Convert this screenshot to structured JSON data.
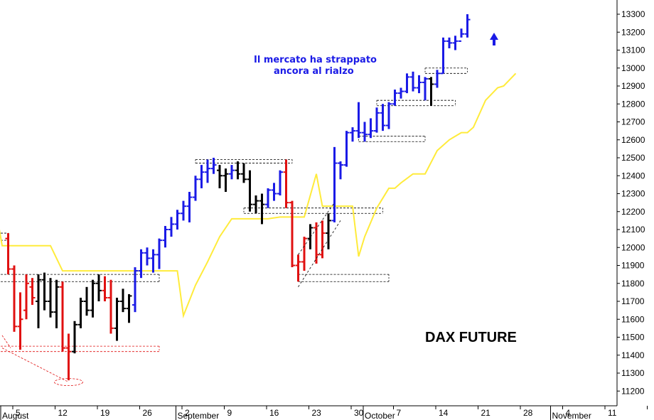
{
  "chart_data": {
    "type": "ohlc",
    "title": "DAX FUTURE",
    "annotation_lines": [
      "Il mercato ha strappato",
      "ancora al rialzo"
    ],
    "y_axis_position": "right",
    "ylim": [
      11150,
      13350
    ],
    "y_ticks": [
      11200,
      11300,
      11400,
      11500,
      11600,
      11700,
      11800,
      11900,
      12000,
      12100,
      12200,
      12300,
      12400,
      12500,
      12600,
      12700,
      12800,
      12900,
      13000,
      13100,
      13200,
      13300
    ],
    "x_ticks": [
      {
        "day": 0,
        "label": "5"
      },
      {
        "day": 7,
        "label": "12"
      },
      {
        "day": 14,
        "label": "19"
      },
      {
        "day": 21,
        "label": "26"
      },
      {
        "day": 28,
        "label": "2"
      },
      {
        "day": 35,
        "label": "9"
      },
      {
        "day": 42,
        "label": "16"
      },
      {
        "day": 49,
        "label": "23"
      },
      {
        "day": 56,
        "label": "30"
      },
      {
        "day": 63,
        "label": "7"
      },
      {
        "day": 70,
        "label": "14"
      },
      {
        "day": 77,
        "label": "21"
      },
      {
        "day": 84,
        "label": "28"
      },
      {
        "day": 91,
        "label": "4"
      },
      {
        "day": 98,
        "label": "11"
      },
      {
        "day": 105,
        "label": ""
      }
    ],
    "month_labels": [
      {
        "day": -2,
        "label": "August"
      },
      {
        "day": 27,
        "label": "September"
      },
      {
        "day": 58,
        "label": "October"
      },
      {
        "day": 89,
        "label": "November"
      }
    ],
    "colors": {
      "up_trend": "#1a1ae6",
      "down_trend": "#e01010",
      "neutral": "#000000",
      "trailing_line": "#ffeb3b",
      "grid": "#000000"
    },
    "bars": [
      {
        "d": -1,
        "o": 12050,
        "h": 12080,
        "l": 11850,
        "c": 11880,
        "color": "down"
      },
      {
        "d": 0,
        "o": 11880,
        "h": 11900,
        "l": 11530,
        "c": 11560,
        "color": "down"
      },
      {
        "d": 1,
        "o": 11560,
        "h": 11750,
        "l": 11430,
        "c": 11600,
        "color": "down"
      },
      {
        "d": 2,
        "o": 11650,
        "h": 11850,
        "l": 11600,
        "c": 11800,
        "color": "down"
      },
      {
        "d": 3,
        "o": 11780,
        "h": 11830,
        "l": 11680,
        "c": 11720,
        "color": "down"
      },
      {
        "d": 4,
        "o": 11700,
        "h": 11850,
        "l": 11550,
        "c": 11820,
        "color": "neutral"
      },
      {
        "d": 5,
        "o": 11820,
        "h": 11860,
        "l": 11650,
        "c": 11700,
        "color": "neutral"
      },
      {
        "d": 6,
        "o": 11700,
        "h": 11830,
        "l": 11610,
        "c": 11640,
        "color": "neutral"
      },
      {
        "d": 7,
        "o": 11640,
        "h": 11820,
        "l": 11550,
        "c": 11780,
        "color": "neutral"
      },
      {
        "d": 8,
        "o": 11780,
        "h": 11810,
        "l": 11420,
        "c": 11440,
        "color": "down"
      },
      {
        "d": 9,
        "o": 11440,
        "h": 11520,
        "l": 11260,
        "c": 11420,
        "color": "down"
      },
      {
        "d": 10,
        "o": 11420,
        "h": 11590,
        "l": 11410,
        "c": 11570,
        "color": "neutral"
      },
      {
        "d": 11,
        "o": 11570,
        "h": 11720,
        "l": 11550,
        "c": 11700,
        "color": "neutral"
      },
      {
        "d": 12,
        "o": 11700,
        "h": 11780,
        "l": 11620,
        "c": 11650,
        "color": "neutral"
      },
      {
        "d": 13,
        "o": 11650,
        "h": 11820,
        "l": 11610,
        "c": 11800,
        "color": "neutral"
      },
      {
        "d": 14,
        "o": 11800,
        "h": 11850,
        "l": 11700,
        "c": 11760,
        "color": "neutral"
      },
      {
        "d": 15,
        "o": 11760,
        "h": 11840,
        "l": 11700,
        "c": 11720,
        "color": "down"
      },
      {
        "d": 16,
        "o": 11720,
        "h": 11820,
        "l": 11520,
        "c": 11550,
        "color": "down"
      },
      {
        "d": 17,
        "o": 11550,
        "h": 11720,
        "l": 11480,
        "c": 11700,
        "color": "neutral"
      },
      {
        "d": 18,
        "o": 11700,
        "h": 11770,
        "l": 11640,
        "c": 11660,
        "color": "neutral"
      },
      {
        "d": 19,
        "o": 11660,
        "h": 11740,
        "l": 11580,
        "c": 11730,
        "color": "neutral"
      },
      {
        "d": 20,
        "o": 11680,
        "h": 11890,
        "l": 11640,
        "c": 11870,
        "color": "up"
      },
      {
        "d": 21,
        "o": 11870,
        "h": 11990,
        "l": 11830,
        "c": 11970,
        "color": "up"
      },
      {
        "d": 22,
        "o": 11970,
        "h": 12000,
        "l": 11900,
        "c": 11940,
        "color": "up"
      },
      {
        "d": 23,
        "o": 11940,
        "h": 11990,
        "l": 11860,
        "c": 11960,
        "color": "up"
      },
      {
        "d": 24,
        "o": 11960,
        "h": 12050,
        "l": 11880,
        "c": 12040,
        "color": "up"
      },
      {
        "d": 25,
        "o": 12040,
        "h": 12120,
        "l": 12000,
        "c": 12100,
        "color": "up"
      },
      {
        "d": 26,
        "o": 12100,
        "h": 12170,
        "l": 12060,
        "c": 12130,
        "color": "up"
      },
      {
        "d": 27,
        "o": 12130,
        "h": 12210,
        "l": 12100,
        "c": 12190,
        "color": "up"
      },
      {
        "d": 28,
        "o": 12190,
        "h": 12260,
        "l": 12150,
        "c": 12230,
        "color": "up"
      },
      {
        "d": 29,
        "o": 12230,
        "h": 12310,
        "l": 12140,
        "c": 12280,
        "color": "up"
      },
      {
        "d": 30,
        "o": 12280,
        "h": 12400,
        "l": 12260,
        "c": 12380,
        "color": "up"
      },
      {
        "d": 31,
        "o": 12380,
        "h": 12460,
        "l": 12330,
        "c": 12420,
        "color": "up"
      },
      {
        "d": 32,
        "o": 12420,
        "h": 12490,
        "l": 12360,
        "c": 12440,
        "color": "up"
      },
      {
        "d": 33,
        "o": 12440,
        "h": 12500,
        "l": 12410,
        "c": 12460,
        "color": "up"
      },
      {
        "d": 34,
        "o": 12430,
        "h": 12460,
        "l": 12330,
        "c": 12400,
        "color": "neutral"
      },
      {
        "d": 35,
        "o": 12400,
        "h": 12440,
        "l": 12310,
        "c": 12410,
        "color": "neutral"
      },
      {
        "d": 36,
        "o": 12410,
        "h": 12460,
        "l": 12380,
        "c": 12430,
        "color": "up"
      },
      {
        "d": 37,
        "o": 12430,
        "h": 12480,
        "l": 12380,
        "c": 12410,
        "color": "neutral"
      },
      {
        "d": 38,
        "o": 12410,
        "h": 12470,
        "l": 12360,
        "c": 12380,
        "color": "neutral"
      },
      {
        "d": 39,
        "o": 12380,
        "h": 12430,
        "l": 12200,
        "c": 12240,
        "color": "neutral"
      },
      {
        "d": 40,
        "o": 12240,
        "h": 12290,
        "l": 12190,
        "c": 12260,
        "color": "neutral"
      },
      {
        "d": 41,
        "o": 12260,
        "h": 12300,
        "l": 12130,
        "c": 12240,
        "color": "neutral"
      },
      {
        "d": 42,
        "o": 12240,
        "h": 12330,
        "l": 12220,
        "c": 12320,
        "color": "up"
      },
      {
        "d": 43,
        "o": 12320,
        "h": 12360,
        "l": 12260,
        "c": 12300,
        "color": "up"
      },
      {
        "d": 44,
        "o": 12300,
        "h": 12430,
        "l": 12290,
        "c": 12420,
        "color": "up"
      },
      {
        "d": 45,
        "o": 12420,
        "h": 12490,
        "l": 12220,
        "c": 12250,
        "color": "down"
      },
      {
        "d": 46,
        "o": 12250,
        "h": 12260,
        "l": 11890,
        "c": 11900,
        "color": "down"
      },
      {
        "d": 47,
        "o": 11900,
        "h": 11960,
        "l": 11810,
        "c": 11920,
        "color": "down"
      },
      {
        "d": 48,
        "o": 11920,
        "h": 12060,
        "l": 11870,
        "c": 12050,
        "color": "down"
      },
      {
        "d": 49,
        "o": 12050,
        "h": 12130,
        "l": 11990,
        "c": 12110,
        "color": "neutral"
      },
      {
        "d": 50,
        "o": 12110,
        "h": 12140,
        "l": 11910,
        "c": 11960,
        "color": "down"
      },
      {
        "d": 51,
        "o": 11960,
        "h": 12150,
        "l": 11940,
        "c": 12080,
        "color": "down"
      },
      {
        "d": 52,
        "o": 12080,
        "h": 12190,
        "l": 11990,
        "c": 12150,
        "color": "neutral"
      },
      {
        "d": 53,
        "o": 12150,
        "h": 12560,
        "l": 12140,
        "c": 12470,
        "color": "up"
      },
      {
        "d": 54,
        "o": 12470,
        "h": 12480,
        "l": 12380,
        "c": 12460,
        "color": "up"
      },
      {
        "d": 55,
        "o": 12460,
        "h": 12650,
        "l": 12450,
        "c": 12640,
        "color": "up"
      },
      {
        "d": 56,
        "o": 12640,
        "h": 12670,
        "l": 12590,
        "c": 12650,
        "color": "up"
      },
      {
        "d": 57,
        "o": 12650,
        "h": 12810,
        "l": 12610,
        "c": 12640,
        "color": "up"
      },
      {
        "d": 58,
        "o": 12640,
        "h": 12700,
        "l": 12590,
        "c": 12630,
        "color": "up"
      },
      {
        "d": 59,
        "o": 12630,
        "h": 12720,
        "l": 12610,
        "c": 12650,
        "color": "up"
      },
      {
        "d": 60,
        "o": 12650,
        "h": 12780,
        "l": 12640,
        "c": 12750,
        "color": "up"
      },
      {
        "d": 61,
        "o": 12750,
        "h": 12800,
        "l": 12650,
        "c": 12680,
        "color": "up"
      },
      {
        "d": 62,
        "o": 12680,
        "h": 12810,
        "l": 12660,
        "c": 12800,
        "color": "up"
      },
      {
        "d": 63,
        "o": 12800,
        "h": 12880,
        "l": 12790,
        "c": 12860,
        "color": "up"
      },
      {
        "d": 64,
        "o": 12860,
        "h": 12890,
        "l": 12830,
        "c": 12870,
        "color": "up"
      },
      {
        "d": 65,
        "o": 12870,
        "h": 12970,
        "l": 12860,
        "c": 12950,
        "color": "up"
      },
      {
        "d": 66,
        "o": 12950,
        "h": 12980,
        "l": 12870,
        "c": 12890,
        "color": "up"
      },
      {
        "d": 67,
        "o": 12890,
        "h": 12960,
        "l": 12860,
        "c": 12920,
        "color": "up"
      },
      {
        "d": 68,
        "o": 12920,
        "h": 12950,
        "l": 12820,
        "c": 12940,
        "color": "up"
      },
      {
        "d": 69,
        "o": 12940,
        "h": 12950,
        "l": 12790,
        "c": 12910,
        "color": "neutral"
      },
      {
        "d": 70,
        "o": 12910,
        "h": 12990,
        "l": 12890,
        "c": 12970,
        "color": "up"
      },
      {
        "d": 71,
        "o": 12970,
        "h": 13170,
        "l": 12970,
        "c": 13150,
        "color": "up"
      },
      {
        "d": 72,
        "o": 13150,
        "h": 13170,
        "l": 13110,
        "c": 13140,
        "color": "up"
      },
      {
        "d": 73,
        "o": 13140,
        "h": 13180,
        "l": 13100,
        "c": 13150,
        "color": "up"
      },
      {
        "d": 74,
        "o": 13150,
        "h": 13220,
        "l": 13170,
        "c": 13190,
        "color": "up"
      },
      {
        "d": 75,
        "o": 13190,
        "h": 13300,
        "l": 13170,
        "c": 13270,
        "color": "up"
      }
    ],
    "trailing_line": [
      [
        -4,
        12400
      ],
      [
        -2,
        12010
      ],
      [
        6,
        12010
      ],
      [
        8,
        11870
      ],
      [
        27,
        11870
      ],
      [
        28,
        11620
      ],
      [
        30,
        11790
      ],
      [
        32,
        11920
      ],
      [
        34,
        12060
      ],
      [
        36,
        12160
      ],
      [
        42,
        12160
      ],
      [
        44,
        12170
      ],
      [
        48,
        12170
      ],
      [
        50,
        12410
      ],
      [
        51,
        12230
      ],
      [
        56,
        12230
      ],
      [
        57,
        11950
      ],
      [
        58,
        12060
      ],
      [
        60,
        12220
      ],
      [
        62,
        12330
      ],
      [
        63,
        12330
      ],
      [
        64,
        12360
      ],
      [
        66,
        12410
      ],
      [
        68,
        12410
      ],
      [
        70,
        12540
      ],
      [
        72,
        12600
      ],
      [
        74,
        12640
      ],
      [
        75,
        12640
      ],
      [
        76,
        12670
      ],
      [
        78,
        12820
      ],
      [
        80,
        12890
      ],
      [
        81,
        12900
      ],
      [
        83,
        12970
      ]
    ],
    "levels": [
      {
        "d0": -4,
        "d1": 24,
        "v": 11850,
        "color": "neutral"
      },
      {
        "d0": -4,
        "d1": 24,
        "v": 11810,
        "color": "neutral"
      },
      {
        "d0": -4,
        "d1": 24,
        "v": 11450,
        "color": "down"
      },
      {
        "d0": -4,
        "d1": 24,
        "v": 11420,
        "color": "down"
      },
      {
        "d0": -4,
        "d1": -1,
        "v": 12080,
        "color": "neutral"
      },
      {
        "d0": -4,
        "d1": -1,
        "v": 12040,
        "color": "neutral"
      },
      {
        "d0": 30,
        "d1": 46,
        "v": 12490,
        "color": "neutral"
      },
      {
        "d0": 30,
        "d1": 46,
        "v": 12470,
        "color": "neutral"
      },
      {
        "d0": 47,
        "d1": 62,
        "v": 11850,
        "color": "neutral"
      },
      {
        "d0": 47,
        "d1": 62,
        "v": 11810,
        "color": "neutral"
      },
      {
        "d0": 38,
        "d1": 61,
        "v": 12220,
        "color": "neutral"
      },
      {
        "d0": 38,
        "d1": 61,
        "v": 12190,
        "color": "neutral"
      },
      {
        "d0": 57,
        "d1": 68,
        "v": 12620,
        "color": "neutral"
      },
      {
        "d0": 57,
        "d1": 68,
        "v": 12590,
        "color": "neutral"
      },
      {
        "d0": 60,
        "d1": 73,
        "v": 12820,
        "color": "neutral"
      },
      {
        "d0": 60,
        "d1": 73,
        "v": 12790,
        "color": "neutral"
      },
      {
        "d0": 68,
        "d1": 75,
        "v": 13000,
        "color": "neutral"
      },
      {
        "d0": 68,
        "d1": 75,
        "v": 12970,
        "color": "neutral"
      }
    ]
  }
}
